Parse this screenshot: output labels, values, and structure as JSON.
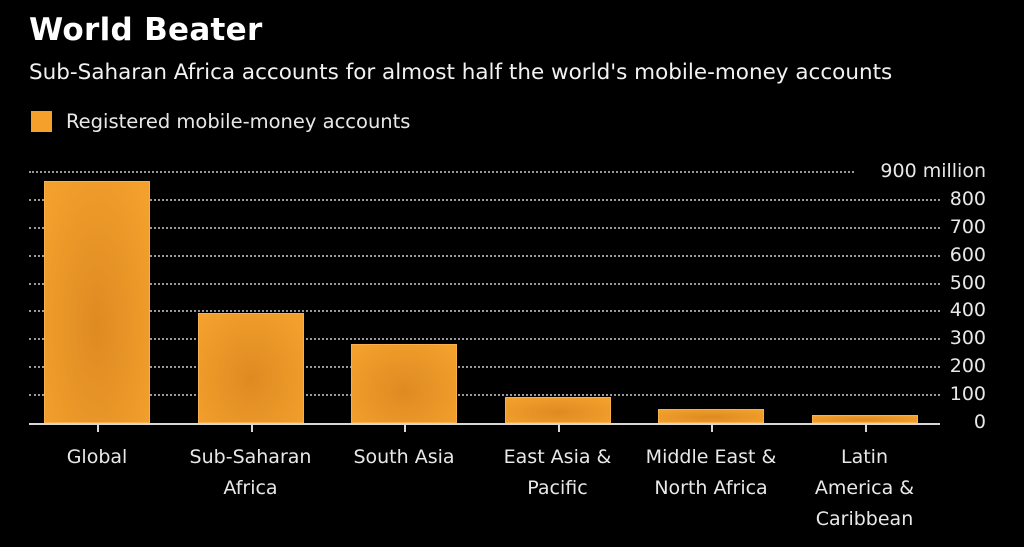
{
  "header": {
    "title": "World Beater",
    "subtitle": "Sub-Saharan Africa accounts for almost half the world's mobile-money accounts"
  },
  "legend": {
    "label": "Registered mobile-money accounts",
    "color": "#f5a02a"
  },
  "chart_data": {
    "type": "bar",
    "title": "World Beater",
    "subtitle": "Sub-Saharan Africa accounts for almost half the world's mobile-money accounts",
    "categories": [
      "Global",
      "Sub-Saharan Africa",
      "South Asia",
      "East Asia & Pacific",
      "Middle East & North Africa",
      "Latin America & Caribbean"
    ],
    "category_labels": [
      "Global",
      "Sub-Saharan\nAfrica",
      "South Asia",
      "East Asia &\nPacific",
      "Middle East &\nNorth Africa",
      "Latin\nAmerica &\nCaribbean"
    ],
    "series": [
      {
        "name": "Registered mobile-money accounts",
        "values": [
          868,
          395,
          283,
          93,
          50,
          29
        ],
        "color": "#f5a02a"
      }
    ],
    "xlabel": "",
    "ylabel": "million",
    "ylim": [
      0,
      900
    ],
    "yticks": [
      0,
      100,
      200,
      300,
      400,
      500,
      600,
      700,
      800,
      900
    ],
    "ytick_labels": [
      "0",
      "100",
      "200",
      "300",
      "400",
      "500",
      "600",
      "700",
      "800",
      "900 million"
    ],
    "grid": true,
    "grid_style": "dotted",
    "yaxis_position": "right",
    "legend_position": "top-left",
    "background": "#000000"
  }
}
